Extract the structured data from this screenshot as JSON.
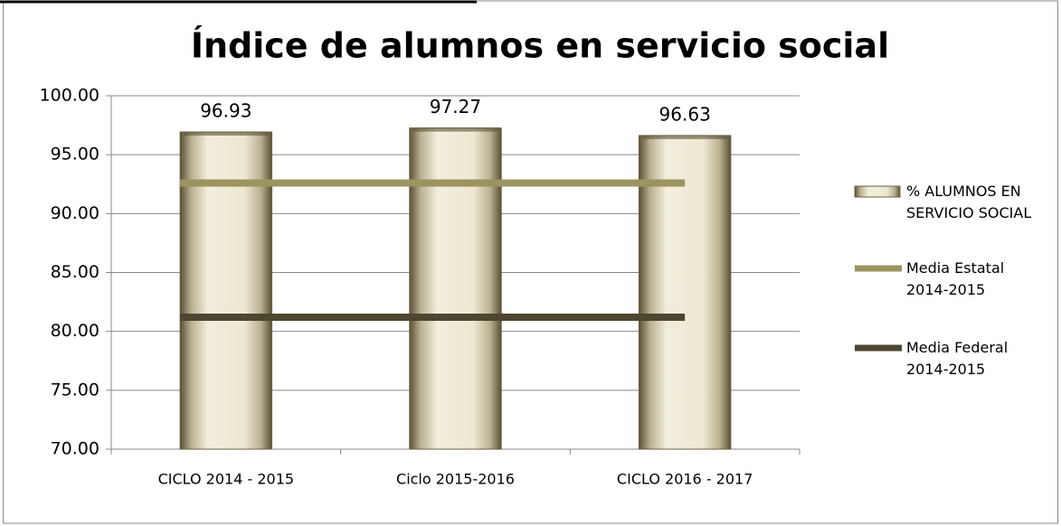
{
  "chart_data": {
    "type": "bar",
    "title": "Índice de alumnos en servicio social",
    "categories": [
      "CICLO 2014 - 2015",
      "Ciclo 2015-2016",
      "CICLO 2016 - 2017"
    ],
    "series": [
      {
        "name": "% ALUMNOS EN SERVICIO SOCIAL",
        "type": "bar",
        "color": "#e6e0c8",
        "values": [
          96.93,
          97.27,
          96.63
        ]
      },
      {
        "name": "Media Estatal 2014-2015",
        "type": "line",
        "color": "#9c9460",
        "values": [
          92.6,
          92.6,
          92.6
        ]
      },
      {
        "name": "Media Federal 2014-2015",
        "type": "line",
        "color": "#4d4630",
        "values": [
          81.2,
          81.2,
          81.2
        ]
      }
    ],
    "ylim": [
      70,
      100
    ],
    "yticks": [
      {
        "value": 70,
        "label": "70.00"
      },
      {
        "value": 75,
        "label": "75.00"
      },
      {
        "value": 80,
        "label": "80.00"
      },
      {
        "value": 85,
        "label": "85.00"
      },
      {
        "value": 90,
        "label": "90.00"
      },
      {
        "value": 95,
        "label": "95.00"
      },
      {
        "value": 100,
        "label": "100.00"
      }
    ],
    "grid": true,
    "legend": "right"
  }
}
